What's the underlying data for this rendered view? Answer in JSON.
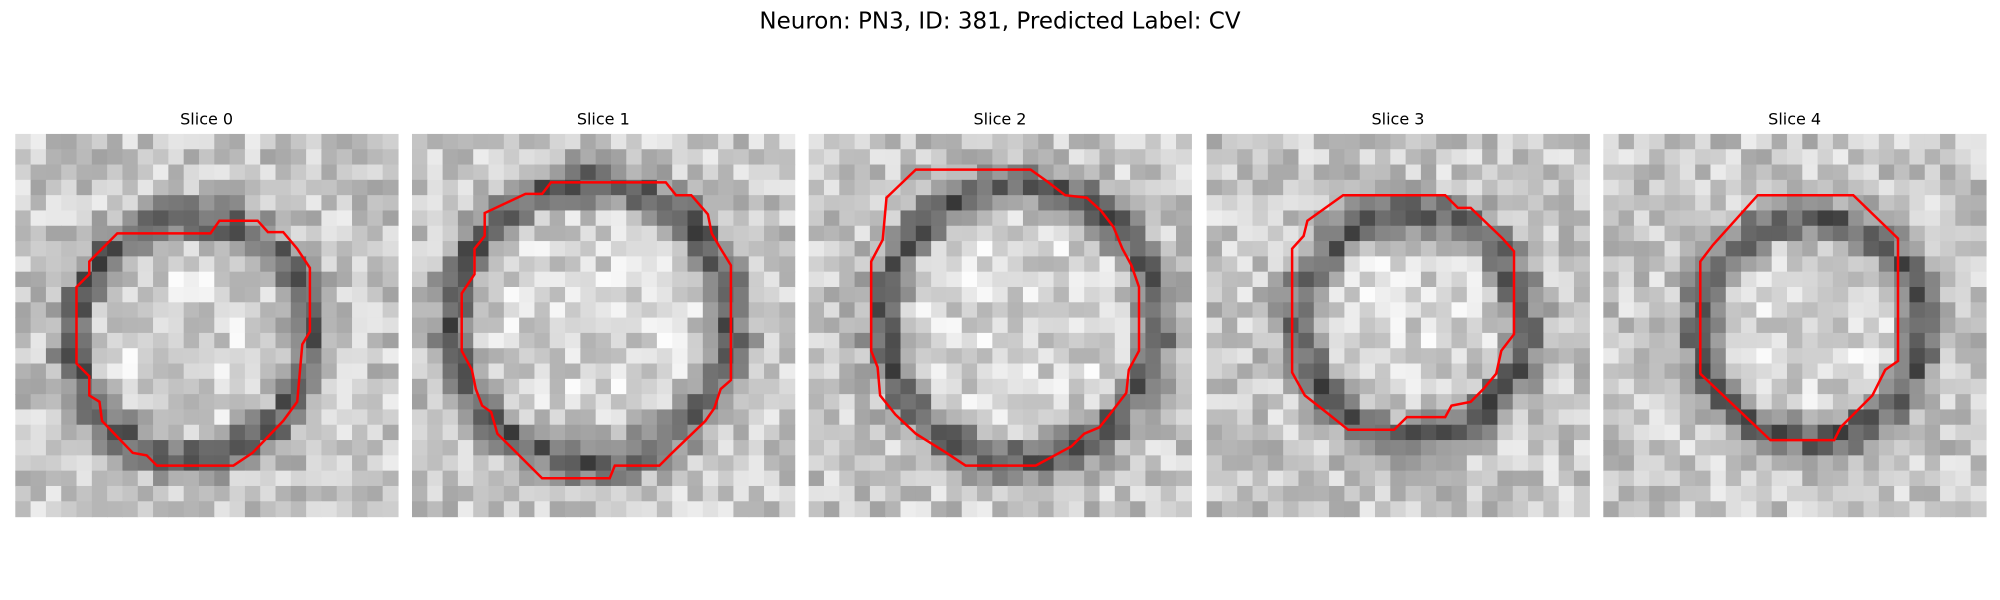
{
  "title": "Neuron: PN3, ID: 381, Predicted Label: CV",
  "panels": [
    {
      "title": "Slice 0"
    },
    {
      "title": "Slice 1"
    },
    {
      "title": "Slice 2"
    },
    {
      "title": "Slice 3"
    },
    {
      "title": "Slice 4"
    }
  ]
}
